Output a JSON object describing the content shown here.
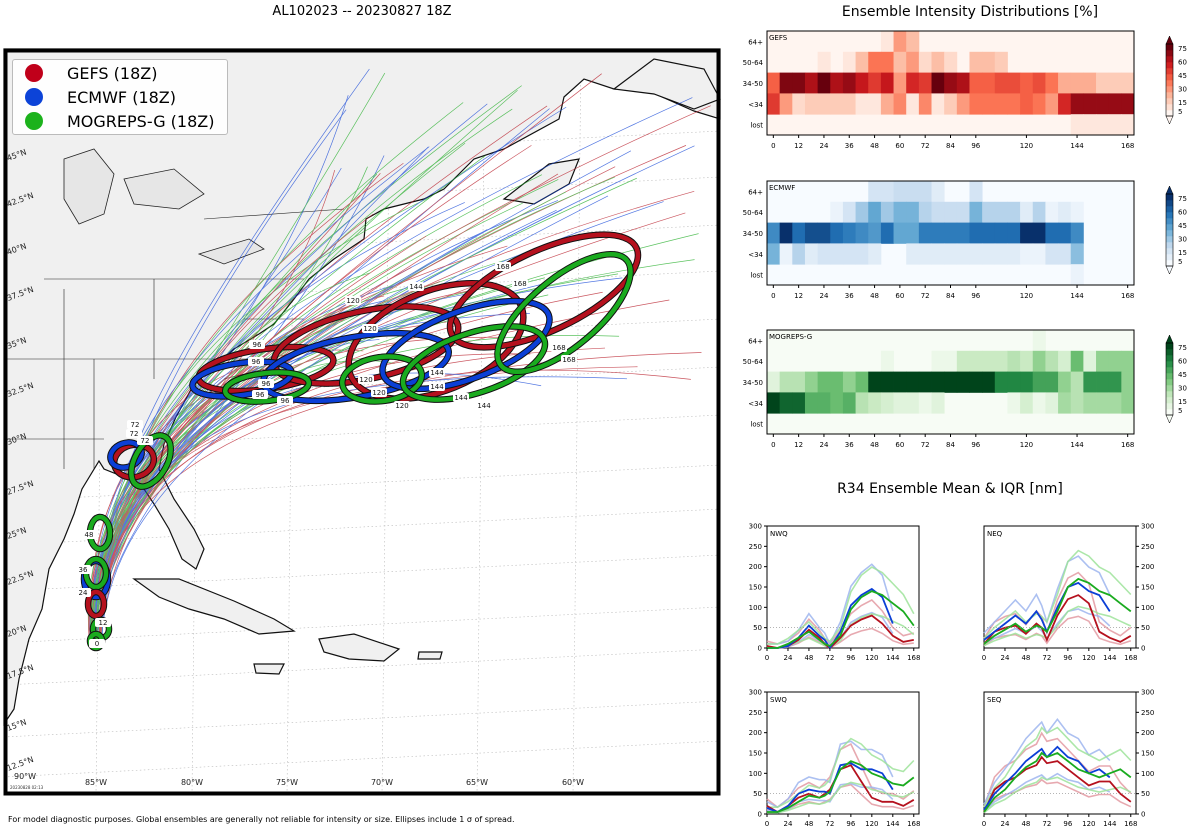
{
  "header": {
    "title": "AL102023 -- 20230827 18Z",
    "ensemble_title": "Ensemble Intensity Distributions [%]",
    "r34_title": "R34 Ensemble Mean & IQR [nm]",
    "footer": "For model diagnostic purposes. Global ensembles are generally not reliable for intensity or size. Ellipses include 1 σ of spread."
  },
  "colors": {
    "gefs": "#b5111e",
    "ecmwf": "#0b3fd6",
    "mogreps": "#1aab1f"
  },
  "legend": [
    {
      "label": "GEFS (18Z)",
      "color": "#c0001a"
    },
    {
      "label": "ECMWF (18Z)",
      "color": "#0c43d8"
    },
    {
      "label": "MOGREPS-G (18Z)",
      "color": "#1cb21c"
    }
  ],
  "map": {
    "lat_labels": [
      "45°N",
      "42.5°N",
      "40°N",
      "37.5°N",
      "35°N",
      "32.5°N",
      "30°N",
      "27.5°N",
      "25°N",
      "22.5°N",
      "20°N",
      "17.5°N",
      "15°N",
      "12.5°N"
    ],
    "lon_labels": [
      "85°W",
      "80°W",
      "75°W",
      "70°W",
      "65°W",
      "60°W"
    ],
    "corner_lon_label": "90°W",
    "stamp": "20230828 02:13",
    "ellipse_labels": {
      "gefs": [
        "72",
        "96",
        "120",
        "144",
        "168"
      ],
      "ecmwf": [
        "72",
        "96",
        "120",
        "144"
      ],
      "mogreps": [
        "72",
        "96",
        "120",
        "144",
        "168"
      ]
    },
    "early_labels": [
      "48",
      "36",
      "24",
      "12",
      "0"
    ]
  },
  "heatmap_axes": {
    "y_labels": [
      "64+",
      "50-64",
      "34-50",
      "<34",
      "lost"
    ],
    "x_ticks": [
      0,
      12,
      24,
      36,
      48,
      60,
      72,
      84,
      96,
      120,
      144,
      168
    ],
    "colorbar_ticks": [
      5,
      15,
      30,
      45,
      60,
      75
    ]
  },
  "chart_data": [
    {
      "type": "heatmap",
      "name": "GEFS",
      "x": [
        0,
        6,
        12,
        18,
        24,
        30,
        36,
        42,
        48,
        54,
        60,
        66,
        72,
        78,
        84,
        90,
        96,
        102,
        108,
        114,
        120,
        126,
        132,
        138,
        144,
        150,
        156,
        162,
        168
      ],
      "y_categories": [
        "64+",
        "50-64",
        "34-50",
        "<34",
        "lost"
      ],
      "values": [
        [
          0,
          0,
          0,
          0,
          0,
          0,
          0,
          0,
          0,
          5,
          30,
          20,
          0,
          0,
          0,
          0,
          0,
          0,
          0,
          0,
          0,
          0,
          0,
          0,
          0,
          0,
          0,
          0,
          0
        ],
        [
          0,
          0,
          0,
          0,
          5,
          0,
          5,
          20,
          40,
          40,
          20,
          30,
          10,
          20,
          10,
          0,
          20,
          20,
          15,
          0,
          0,
          0,
          0,
          0,
          0,
          0,
          0,
          0,
          0
        ],
        [
          45,
          80,
          80,
          70,
          85,
          70,
          75,
          65,
          55,
          65,
          30,
          60,
          55,
          90,
          75,
          70,
          45,
          45,
          50,
          50,
          45,
          50,
          40,
          25,
          25,
          25,
          15,
          15,
          15
        ],
        [
          55,
          30,
          10,
          15,
          15,
          15,
          15,
          5,
          5,
          25,
          35,
          5,
          35,
          5,
          15,
          30,
          40,
          40,
          40,
          40,
          45,
          40,
          30,
          60,
          75,
          75,
          75,
          75,
          75
        ],
        [
          0,
          0,
          0,
          0,
          0,
          0,
          0,
          0,
          0,
          0,
          0,
          0,
          0,
          0,
          0,
          0,
          0,
          0,
          0,
          0,
          0,
          0,
          0,
          0,
          5,
          5,
          5,
          5,
          5
        ]
      ]
    },
    {
      "type": "heatmap",
      "name": "ECMWF",
      "x": [
        0,
        6,
        12,
        18,
        24,
        30,
        36,
        42,
        48,
        54,
        60,
        66,
        72,
        78,
        84,
        90,
        96,
        102,
        108,
        114,
        120,
        126,
        132,
        138,
        144,
        150,
        156,
        162,
        168
      ],
      "y_categories": [
        "64+",
        "50-64",
        "34-50",
        "<34",
        "lost"
      ],
      "values": [
        [
          0,
          0,
          0,
          0,
          0,
          0,
          0,
          0,
          15,
          15,
          20,
          20,
          20,
          10,
          0,
          0,
          15,
          0,
          0,
          0,
          0,
          0,
          0,
          0,
          0,
          0,
          0,
          0,
          0
        ],
        [
          0,
          0,
          0,
          0,
          0,
          5,
          15,
          30,
          45,
          30,
          40,
          40,
          25,
          20,
          20,
          20,
          40,
          25,
          25,
          25,
          10,
          25,
          5,
          10,
          5,
          0,
          0,
          0,
          0
        ],
        [
          55,
          85,
          65,
          75,
          75,
          65,
          60,
          55,
          50,
          65,
          45,
          45,
          60,
          60,
          60,
          60,
          65,
          65,
          65,
          65,
          85,
          85,
          65,
          65,
          55,
          0,
          0,
          0,
          0
        ],
        [
          40,
          5,
          25,
          10,
          15,
          15,
          15,
          15,
          10,
          0,
          0,
          10,
          10,
          10,
          10,
          10,
          10,
          10,
          10,
          10,
          5,
          5,
          15,
          15,
          35,
          0,
          0,
          0,
          0
        ],
        [
          0,
          0,
          0,
          0,
          0,
          0,
          0,
          0,
          0,
          0,
          0,
          0,
          0,
          0,
          0,
          0,
          0,
          0,
          0,
          0,
          0,
          0,
          0,
          0,
          5,
          0,
          0,
          0,
          0
        ]
      ]
    },
    {
      "type": "heatmap",
      "name": "MOGREPS-G",
      "x": [
        0,
        6,
        12,
        18,
        24,
        30,
        36,
        42,
        48,
        54,
        60,
        66,
        72,
        78,
        84,
        90,
        96,
        102,
        108,
        114,
        120,
        126,
        132,
        138,
        144,
        150,
        156,
        162,
        168
      ],
      "y_categories": [
        "64+",
        "50-64",
        "34-50",
        "<34",
        "lost"
      ],
      "values": [
        [
          0,
          0,
          0,
          0,
          0,
          0,
          0,
          0,
          0,
          0,
          0,
          0,
          0,
          0,
          0,
          0,
          0,
          0,
          0,
          0,
          0,
          5,
          0,
          0,
          0,
          0,
          0,
          0,
          0
        ],
        [
          0,
          0,
          0,
          0,
          0,
          0,
          0,
          0,
          0,
          5,
          0,
          0,
          0,
          5,
          5,
          20,
          20,
          20,
          20,
          25,
          20,
          35,
          25,
          15,
          45,
          10,
          35,
          35,
          35
        ],
        [
          10,
          25,
          25,
          35,
          45,
          45,
          35,
          45,
          85,
          85,
          85,
          85,
          85,
          85,
          85,
          85,
          85,
          85,
          65,
          65,
          65,
          55,
          55,
          35,
          25,
          60,
          60,
          60,
          35
        ],
        [
          85,
          75,
          75,
          50,
          50,
          45,
          50,
          25,
          20,
          15,
          10,
          10,
          5,
          10,
          0,
          0,
          0,
          0,
          0,
          5,
          15,
          5,
          10,
          30,
          25,
          30,
          30,
          30,
          35
        ],
        [
          0,
          0,
          0,
          0,
          0,
          0,
          0,
          0,
          0,
          0,
          0,
          0,
          0,
          0,
          0,
          0,
          0,
          0,
          0,
          0,
          0,
          0,
          0,
          0,
          0,
          0,
          0,
          0,
          0
        ]
      ]
    },
    {
      "type": "line",
      "name": "NWQ",
      "x": [
        0,
        12,
        24,
        36,
        48,
        60,
        66,
        72,
        84,
        96,
        108,
        120,
        132,
        144,
        156,
        168
      ],
      "ylim": [
        0,
        300
      ],
      "series": [
        {
          "name": "GEFS",
          "values": [
            5,
            0,
            5,
            20,
            45,
            25,
            10,
            0,
            25,
            55,
            70,
            80,
            60,
            30,
            15,
            20
          ]
        },
        {
          "name": "ECMWF",
          "values": [
            0,
            0,
            5,
            25,
            55,
            30,
            20,
            0,
            40,
            105,
            130,
            145,
            125,
            60,
            null,
            null
          ]
        },
        {
          "name": "MOGREPS-G",
          "values": [
            0,
            0,
            10,
            25,
            40,
            20,
            10,
            5,
            30,
            95,
            125,
            140,
            130,
            110,
            90,
            55
          ]
        }
      ]
    },
    {
      "type": "line",
      "name": "NEQ",
      "x": [
        0,
        12,
        24,
        36,
        48,
        60,
        66,
        72,
        84,
        96,
        108,
        120,
        132,
        144,
        156,
        168
      ],
      "ylim": [
        0,
        300
      ],
      "series": [
        {
          "name": "GEFS",
          "values": [
            10,
            40,
            50,
            55,
            35,
            60,
            50,
            20,
            80,
            120,
            130,
            110,
            40,
            25,
            15,
            30
          ]
        },
        {
          "name": "ECMWF",
          "values": [
            20,
            40,
            60,
            80,
            60,
            90,
            70,
            40,
            100,
            150,
            160,
            140,
            130,
            90,
            null,
            null
          ]
        },
        {
          "name": "MOGREPS-G",
          "values": [
            10,
            30,
            45,
            60,
            40,
            55,
            50,
            40,
            90,
            150,
            170,
            160,
            140,
            130,
            110,
            90
          ]
        }
      ]
    },
    {
      "type": "line",
      "name": "SWQ",
      "x": [
        0,
        12,
        24,
        36,
        48,
        60,
        66,
        72,
        84,
        96,
        108,
        120,
        132,
        144,
        156,
        168
      ],
      "ylim": [
        0,
        300
      ],
      "series": [
        {
          "name": "GEFS",
          "values": [
            20,
            5,
            20,
            40,
            50,
            40,
            50,
            60,
            110,
            120,
            80,
            40,
            30,
            30,
            20,
            35
          ]
        },
        {
          "name": "ECMWF",
          "values": [
            15,
            5,
            20,
            50,
            60,
            55,
            55,
            50,
            120,
            125,
            110,
            110,
            100,
            60,
            null,
            null
          ]
        },
        {
          "name": "MOGREPS-G",
          "values": [
            5,
            5,
            15,
            30,
            45,
            40,
            45,
            55,
            110,
            130,
            120,
            100,
            90,
            75,
            70,
            90
          ]
        }
      ]
    },
    {
      "type": "line",
      "name": "SEQ",
      "x": [
        0,
        12,
        24,
        36,
        48,
        60,
        66,
        72,
        84,
        96,
        108,
        120,
        132,
        144,
        156,
        168
      ],
      "ylim": [
        0,
        300
      ],
      "series": [
        {
          "name": "GEFS",
          "values": [
            5,
            60,
            80,
            90,
            110,
            120,
            140,
            125,
            130,
            110,
            90,
            70,
            80,
            80,
            50,
            30
          ]
        },
        {
          "name": "ECMWF",
          "values": [
            10,
            50,
            75,
            100,
            130,
            150,
            160,
            140,
            165,
            140,
            130,
            100,
            110,
            90,
            null,
            null
          ]
        },
        {
          "name": "MOGREPS-G",
          "values": [
            5,
            40,
            60,
            90,
            115,
            130,
            150,
            140,
            150,
            130,
            110,
            100,
            90,
            100,
            110,
            90
          ]
        }
      ]
    }
  ]
}
